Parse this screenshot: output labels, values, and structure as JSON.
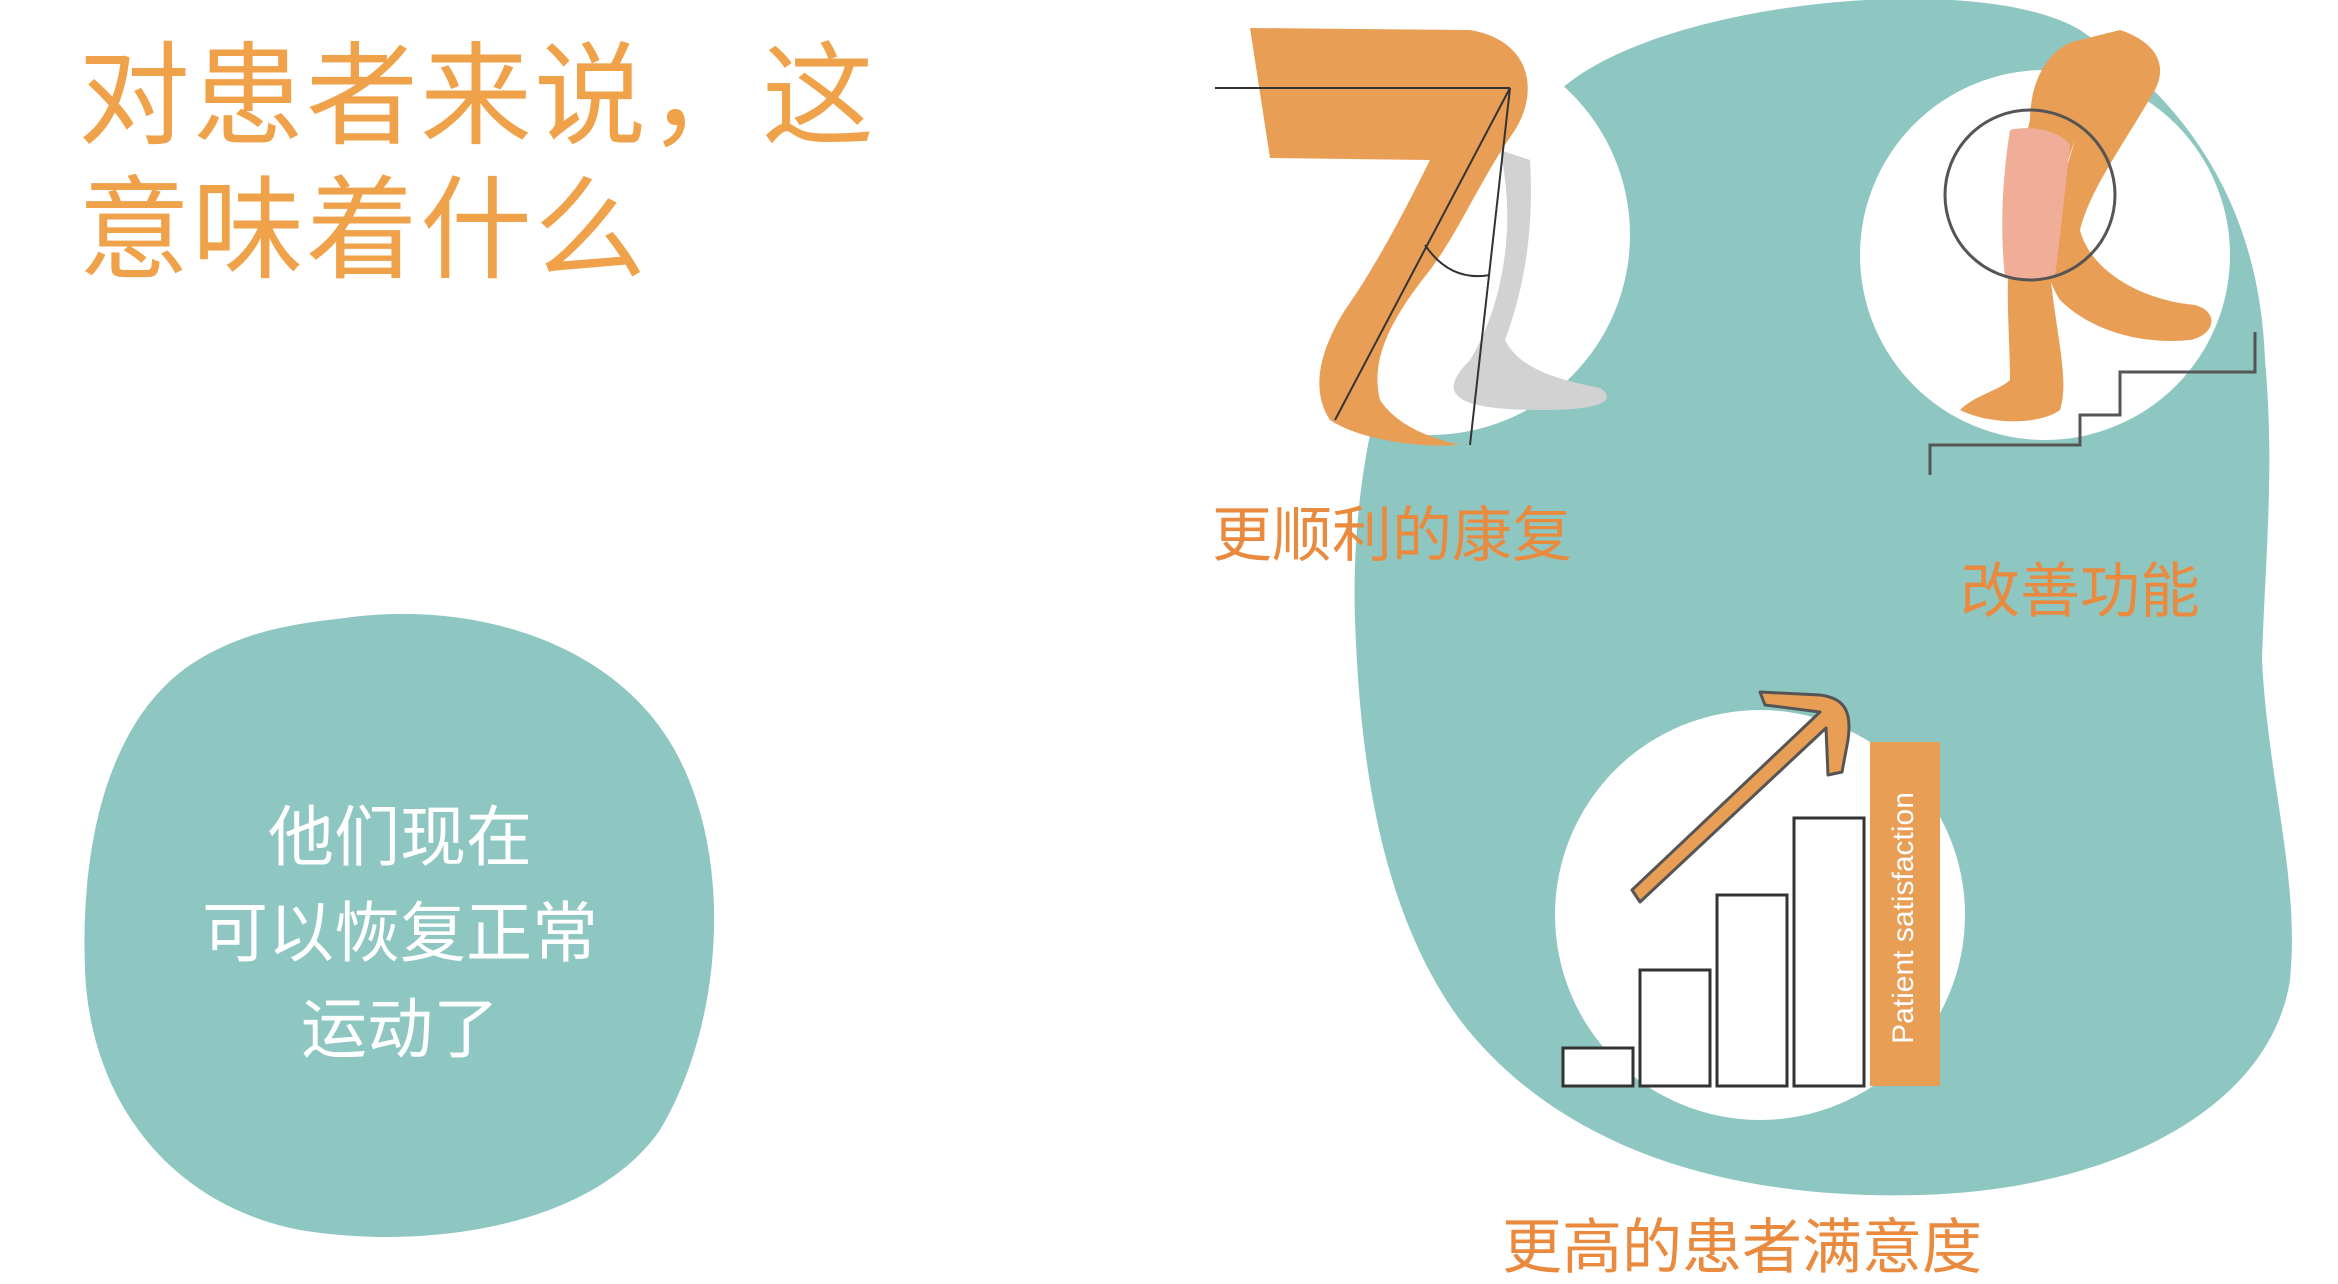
{
  "title": {
    "line1": "对患者来说，这",
    "line2": "意味着什么"
  },
  "bubble": {
    "line1": "他们现在",
    "line2": "可以恢复正常",
    "line3": "运动了"
  },
  "benefits": [
    {
      "label": "更顺利的康复",
      "icon": "bent-leg-icon"
    },
    {
      "label": "改善功能",
      "icon": "leg-stairs-icon"
    },
    {
      "label": "更高的患者满意度",
      "icon": "rising-bars-icon"
    }
  ],
  "chart_label": "Patient satisfaction",
  "colors": {
    "title": "#f0a24a",
    "caption": "#ea8a3e",
    "teal": "#8ec7c1",
    "leg_orange": "#e99e56",
    "leg_grey": "#d2d2d2",
    "knee_pink": "#f0ad98",
    "bar_label_bg": "#e99e56"
  }
}
